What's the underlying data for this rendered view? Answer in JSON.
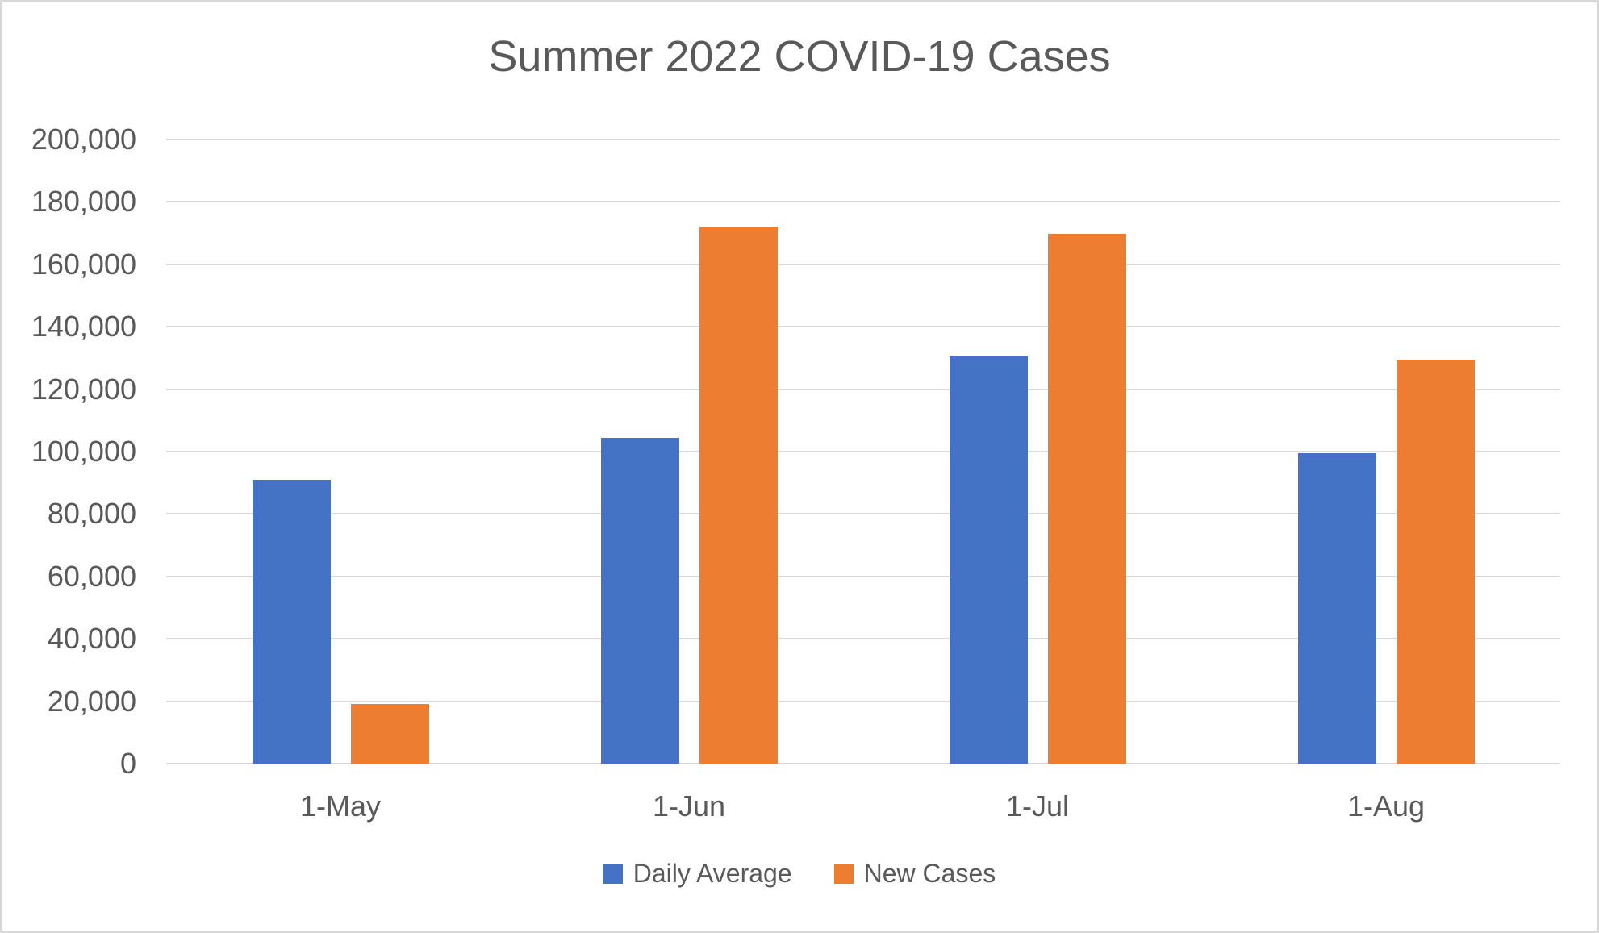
{
  "chart_data": {
    "type": "bar",
    "title": "Summer 2022 COVID-19 Cases",
    "categories": [
      "1-May",
      "1-Jun",
      "1-Jul",
      "1-Aug"
    ],
    "series": [
      {
        "name": "Daily Average",
        "color": "#4472C4",
        "values": [
          91000,
          104500,
          130500,
          99500
        ]
      },
      {
        "name": "New Cases",
        "color": "#ED7D31",
        "values": [
          19000,
          172000,
          169700,
          129500
        ]
      }
    ],
    "xlabel": "",
    "ylabel": "",
    "ylim": [
      0,
      200000
    ],
    "ytick_interval": 20000,
    "ytick_labels": [
      "0",
      "20,000",
      "40,000",
      "60,000",
      "80,000",
      "100,000",
      "120,000",
      "140,000",
      "160,000",
      "180,000",
      "200,000"
    ],
    "grid": true,
    "legend_position": "bottom",
    "colors": {
      "text": "#595959",
      "gridline": "#D9D9D9",
      "frame_border": "#D8D8D8",
      "background": "#FFFFFF"
    }
  }
}
